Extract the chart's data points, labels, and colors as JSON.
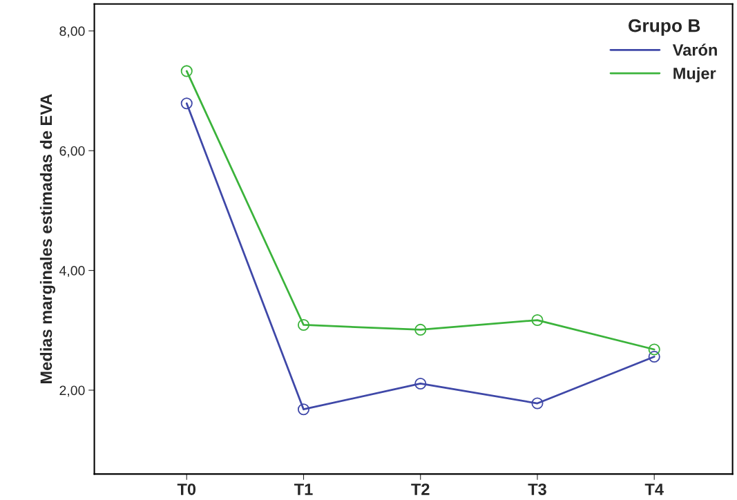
{
  "chart_data": {
    "type": "line",
    "ylabel": "Medias marginales estimadas de EVA",
    "legend_title": "Grupo B",
    "categories": [
      "T0",
      "T1",
      "T2",
      "T3",
      "T4"
    ],
    "series": [
      {
        "name": "Varón",
        "color": "#3f48a8",
        "values": [
          6.79,
          1.68,
          2.11,
          1.78,
          2.56
        ]
      },
      {
        "name": "Mujer",
        "color": "#3bb33b",
        "values": [
          7.33,
          3.09,
          3.01,
          3.17,
          2.68
        ]
      }
    ],
    "ylim": [
      0.6,
      8.45
    ],
    "yticks": [
      {
        "value": 2,
        "label": "2,00"
      },
      {
        "value": 4,
        "label": "4,00"
      },
      {
        "value": 6,
        "label": "6,00"
      },
      {
        "value": 8,
        "label": "8,00"
      }
    ],
    "grid": false,
    "legend": "top right",
    "marker": "circle",
    "line_style": "solid"
  }
}
